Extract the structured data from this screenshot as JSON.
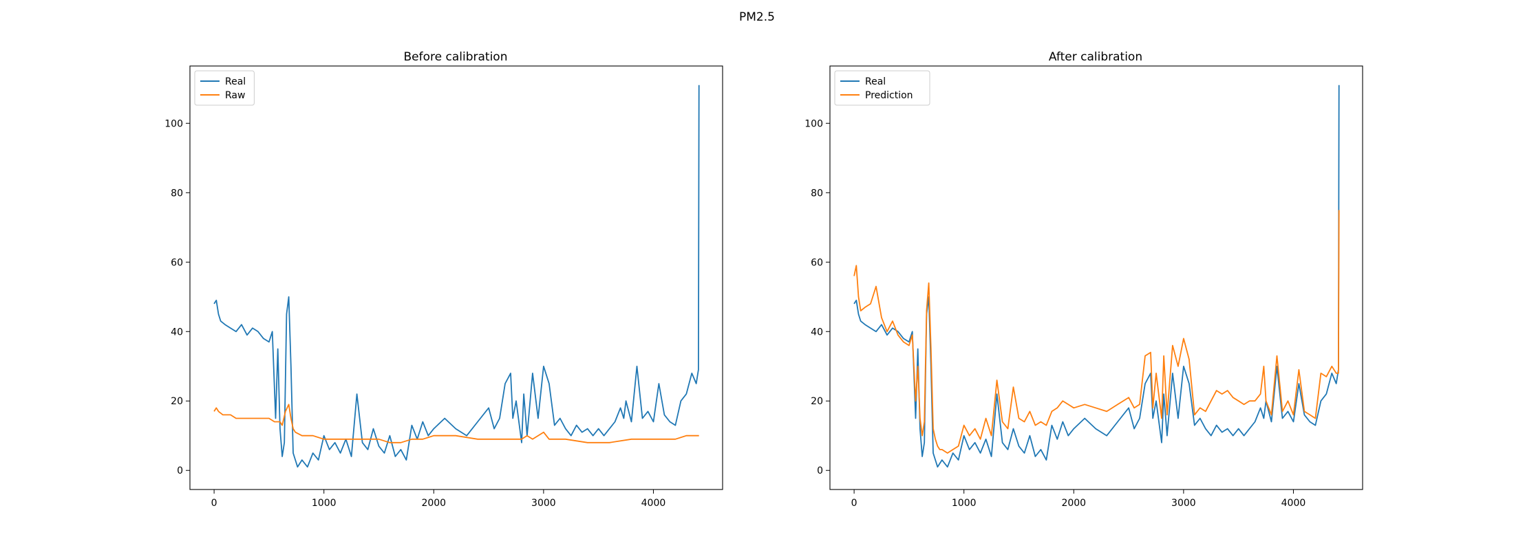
{
  "figure": {
    "title": "PM2.5"
  },
  "colors": {
    "real": "#1f77b4",
    "other": "#ff7f0e",
    "frame": "#000000",
    "legend_border": "#cccccc"
  },
  "chart_data": [
    {
      "type": "line",
      "title": "Before calibration",
      "xlabel": "",
      "ylabel": "",
      "xlim": [
        -220,
        4630
      ],
      "ylim": [
        -5.5,
        116.5
      ],
      "xticks": [
        0,
        1000,
        2000,
        3000,
        4000
      ],
      "yticks": [
        0,
        20,
        40,
        60,
        80,
        100
      ],
      "legend": {
        "position": "top-left"
      },
      "grid": false,
      "series": [
        {
          "name": "Real",
          "color": "#1f77b4",
          "x": [
            0,
            20,
            40,
            60,
            100,
            150,
            200,
            250,
            300,
            350,
            400,
            450,
            500,
            530,
            560,
            580,
            600,
            620,
            640,
            660,
            680,
            700,
            720,
            740,
            760,
            780,
            800,
            850,
            900,
            950,
            1000,
            1050,
            1100,
            1150,
            1200,
            1250,
            1300,
            1350,
            1400,
            1450,
            1500,
            1550,
            1600,
            1650,
            1700,
            1750,
            1800,
            1850,
            1900,
            1950,
            2000,
            2100,
            2200,
            2300,
            2400,
            2500,
            2550,
            2600,
            2650,
            2700,
            2720,
            2750,
            2800,
            2820,
            2850,
            2900,
            2950,
            3000,
            3050,
            3100,
            3150,
            3200,
            3250,
            3300,
            3350,
            3400,
            3450,
            3500,
            3550,
            3600,
            3650,
            3700,
            3730,
            3750,
            3800,
            3850,
            3900,
            3950,
            4000,
            4050,
            4100,
            4150,
            4200,
            4250,
            4300,
            4350,
            4390,
            4400,
            4410,
            4415
          ],
          "y": [
            48,
            49,
            45,
            43,
            42,
            41,
            40,
            42,
            39,
            41,
            40,
            38,
            37,
            40,
            15,
            35,
            12,
            4,
            8,
            45,
            50,
            30,
            5,
            3,
            1,
            2,
            3,
            1,
            5,
            3,
            10,
            6,
            8,
            5,
            9,
            4,
            22,
            8,
            6,
            12,
            7,
            5,
            10,
            4,
            6,
            3,
            13,
            9,
            14,
            10,
            12,
            15,
            12,
            10,
            14,
            18,
            12,
            15,
            25,
            28,
            15,
            20,
            8,
            22,
            10,
            28,
            15,
            30,
            25,
            13,
            15,
            12,
            10,
            13,
            11,
            12,
            10,
            12,
            10,
            12,
            14,
            18,
            15,
            20,
            14,
            30,
            15,
            17,
            14,
            25,
            16,
            14,
            13,
            20,
            22,
            28,
            25,
            27,
            29,
            111
          ]
        },
        {
          "name": "Raw",
          "color": "#ff7f0e",
          "x": [
            0,
            20,
            40,
            80,
            150,
            200,
            300,
            400,
            500,
            550,
            600,
            620,
            650,
            680,
            700,
            720,
            740,
            800,
            900,
            1000,
            1100,
            1200,
            1300,
            1400,
            1500,
            1600,
            1700,
            1800,
            1900,
            2000,
            2200,
            2400,
            2600,
            2700,
            2800,
            2850,
            2900,
            3000,
            3050,
            3200,
            3400,
            3600,
            3800,
            4000,
            4200,
            4300,
            4400,
            4415
          ],
          "y": [
            17,
            18,
            17,
            16,
            16,
            15,
            15,
            15,
            15,
            14,
            14,
            13,
            17,
            19,
            15,
            12,
            11,
            10,
            10,
            9,
            9,
            9,
            9,
            9,
            9,
            8,
            8,
            9,
            9,
            10,
            10,
            9,
            9,
            9,
            9,
            10,
            9,
            11,
            9,
            9,
            8,
            8,
            9,
            9,
            9,
            10,
            10,
            10
          ]
        }
      ]
    },
    {
      "type": "line",
      "title": "After calibration",
      "xlabel": "",
      "ylabel": "",
      "xlim": [
        -220,
        4630
      ],
      "ylim": [
        -5.5,
        116.5
      ],
      "xticks": [
        0,
        1000,
        2000,
        3000,
        4000
      ],
      "yticks": [
        0,
        20,
        40,
        60,
        80,
        100
      ],
      "legend": {
        "position": "top-left"
      },
      "grid": false,
      "series": [
        {
          "name": "Real",
          "color": "#1f77b4",
          "x": [
            0,
            20,
            40,
            60,
            100,
            150,
            200,
            250,
            300,
            350,
            400,
            450,
            500,
            530,
            560,
            580,
            600,
            620,
            640,
            660,
            680,
            700,
            720,
            740,
            760,
            780,
            800,
            850,
            900,
            950,
            1000,
            1050,
            1100,
            1150,
            1200,
            1250,
            1300,
            1350,
            1400,
            1450,
            1500,
            1550,
            1600,
            1650,
            1700,
            1750,
            1800,
            1850,
            1900,
            1950,
            2000,
            2100,
            2200,
            2300,
            2400,
            2500,
            2550,
            2600,
            2650,
            2700,
            2720,
            2750,
            2800,
            2820,
            2850,
            2900,
            2950,
            3000,
            3050,
            3100,
            3150,
            3200,
            3250,
            3300,
            3350,
            3400,
            3450,
            3500,
            3550,
            3600,
            3650,
            3700,
            3730,
            3750,
            3800,
            3850,
            3900,
            3950,
            4000,
            4050,
            4100,
            4150,
            4200,
            4250,
            4300,
            4350,
            4390,
            4400,
            4410,
            4415
          ],
          "y": [
            48,
            49,
            45,
            43,
            42,
            41,
            40,
            42,
            39,
            41,
            40,
            38,
            37,
            40,
            15,
            35,
            12,
            4,
            8,
            45,
            50,
            30,
            5,
            3,
            1,
            2,
            3,
            1,
            5,
            3,
            10,
            6,
            8,
            5,
            9,
            4,
            22,
            8,
            6,
            12,
            7,
            5,
            10,
            4,
            6,
            3,
            13,
            9,
            14,
            10,
            12,
            15,
            12,
            10,
            14,
            18,
            12,
            15,
            25,
            28,
            15,
            20,
            8,
            22,
            10,
            28,
            15,
            30,
            25,
            13,
            15,
            12,
            10,
            13,
            11,
            12,
            10,
            12,
            10,
            12,
            14,
            18,
            15,
            20,
            14,
            30,
            15,
            17,
            14,
            25,
            16,
            14,
            13,
            20,
            22,
            28,
            25,
            27,
            29,
            111
          ]
        },
        {
          "name": "Prediction",
          "color": "#ff7f0e",
          "x": [
            0,
            20,
            40,
            60,
            100,
            150,
            200,
            250,
            300,
            350,
            400,
            450,
            500,
            530,
            560,
            580,
            600,
            620,
            640,
            660,
            680,
            700,
            720,
            740,
            760,
            780,
            800,
            850,
            900,
            950,
            1000,
            1050,
            1100,
            1150,
            1200,
            1250,
            1300,
            1350,
            1400,
            1450,
            1500,
            1550,
            1600,
            1650,
            1700,
            1750,
            1800,
            1850,
            1900,
            1950,
            2000,
            2100,
            2200,
            2300,
            2400,
            2500,
            2550,
            2600,
            2650,
            2700,
            2720,
            2750,
            2800,
            2820,
            2850,
            2900,
            2950,
            3000,
            3050,
            3100,
            3150,
            3200,
            3250,
            3300,
            3350,
            3400,
            3450,
            3500,
            3550,
            3600,
            3650,
            3700,
            3730,
            3750,
            3800,
            3850,
            3900,
            3950,
            4000,
            4050,
            4100,
            4150,
            4200,
            4250,
            4300,
            4350,
            4390,
            4400,
            4410,
            4415
          ],
          "y": [
            56,
            59,
            50,
            46,
            47,
            48,
            53,
            44,
            40,
            43,
            39,
            37,
            36,
            39,
            20,
            30,
            15,
            10,
            14,
            46,
            54,
            35,
            12,
            9,
            7,
            6,
            6,
            5,
            6,
            7,
            13,
            10,
            12,
            9,
            15,
            10,
            26,
            14,
            12,
            24,
            15,
            14,
            17,
            13,
            14,
            13,
            17,
            18,
            20,
            19,
            18,
            19,
            18,
            17,
            19,
            21,
            18,
            19,
            33,
            34,
            18,
            28,
            15,
            33,
            16,
            36,
            30,
            38,
            32,
            16,
            18,
            17,
            20,
            23,
            22,
            23,
            21,
            20,
            19,
            20,
            20,
            22,
            30,
            20,
            16,
            33,
            17,
            20,
            16,
            29,
            17,
            16,
            15,
            28,
            27,
            30,
            28,
            28,
            28,
            75
          ]
        }
      ]
    }
  ]
}
